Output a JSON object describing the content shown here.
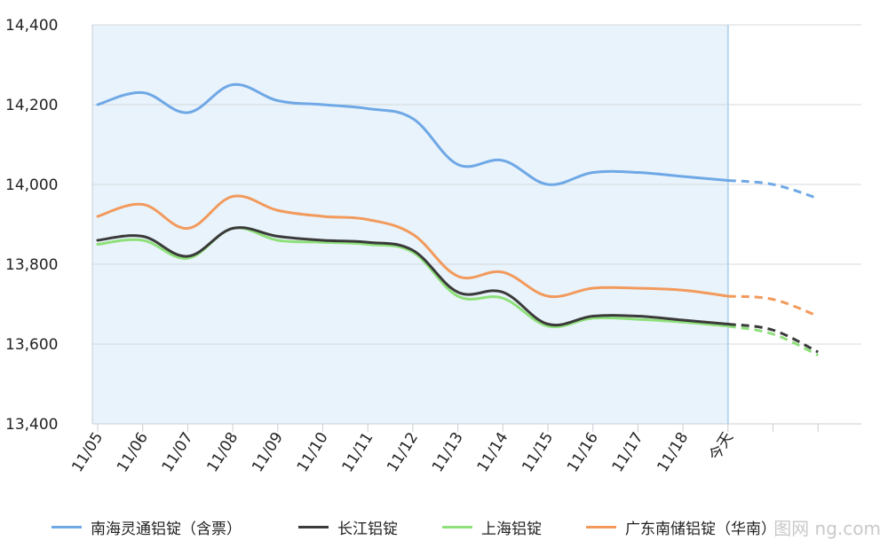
{
  "chart_data": {
    "type": "line",
    "categories": [
      "11/05",
      "11/06",
      "11/07",
      "11/08",
      "11/09",
      "11/10",
      "11/11",
      "11/12",
      "11/13",
      "11/14",
      "11/15",
      "11/16",
      "11/17",
      "11/18",
      "今天",
      "",
      ""
    ],
    "forecast_start_index": 14,
    "ylim": [
      13400,
      14400
    ],
    "yticks": [
      13400,
      13600,
      13800,
      14000,
      14200,
      14400
    ],
    "ytick_labels": [
      "13,400",
      "13,600",
      "13,800",
      "14,000",
      "14,200",
      "14,400"
    ],
    "grid": true,
    "legend_position": "bottom",
    "series": [
      {
        "name": "南海灵通铝锭（含票）",
        "color": "#6fa8e6",
        "values": [
          14200,
          14230,
          14180,
          14250,
          14210,
          14200,
          14190,
          14165,
          14050,
          14060,
          14000,
          14030,
          14030,
          14020,
          14010,
          14000,
          13965
        ]
      },
      {
        "name": "长江铝锭",
        "color": "#3a3a3a",
        "values": [
          13860,
          13870,
          13820,
          13890,
          13870,
          13860,
          13855,
          13835,
          13730,
          13730,
          13650,
          13670,
          13670,
          13660,
          13650,
          13635,
          13580
        ]
      },
      {
        "name": "上海铝锭",
        "color": "#8ee07a",
        "values": [
          13850,
          13860,
          13815,
          13890,
          13860,
          13855,
          13850,
          13830,
          13720,
          13715,
          13645,
          13665,
          13662,
          13655,
          13645,
          13625,
          13572
        ]
      },
      {
        "name": "广东南储铝锭（华南）",
        "color": "#f29a5c",
        "values": [
          13920,
          13950,
          13890,
          13970,
          13935,
          13920,
          13912,
          13875,
          13770,
          13780,
          13720,
          13740,
          13740,
          13735,
          13720,
          13712,
          13670
        ]
      }
    ]
  },
  "watermark": "图网 ng.com"
}
